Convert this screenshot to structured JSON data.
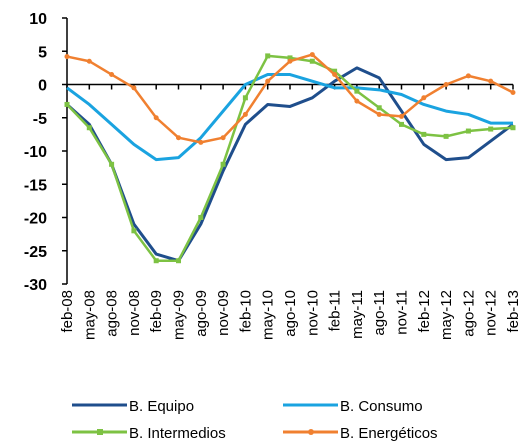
{
  "chart_data": {
    "type": "line",
    "categories": [
      "feb-08",
      "may-08",
      "ago-08",
      "nov-08",
      "feb-09",
      "may-09",
      "ago-09",
      "nov-09",
      "feb-10",
      "may-10",
      "ago-10",
      "nov-10",
      "feb-11",
      "may-11",
      "ago-11",
      "nov-11",
      "feb-12",
      "may-12",
      "ago-12",
      "nov-12",
      "feb-13"
    ],
    "series": [
      {
        "name": "B. Equipo",
        "color": "#1f4e8c",
        "marker": "none",
        "values": [
          -3,
          -6,
          -12,
          -21,
          -25.5,
          -26.5,
          -21,
          -13,
          -6,
          -3,
          -3.3,
          -2,
          0.5,
          2.5,
          1,
          -4,
          -9,
          -11.3,
          -11,
          -8.5,
          -6
        ]
      },
      {
        "name": "B. Consumo",
        "color": "#1aa3e0",
        "marker": "none",
        "values": [
          -0.5,
          -3,
          -6,
          -9,
          -11.3,
          -11,
          -8,
          -4,
          0,
          1.5,
          1.5,
          0.5,
          -0.5,
          -0.5,
          -0.8,
          -1.5,
          -3,
          -4,
          -4.5,
          -5.8,
          -5.8
        ]
      },
      {
        "name": "B. Intermedios",
        "color": "#7dc243",
        "marker": "square",
        "values": [
          -3,
          -6.5,
          -12,
          -22,
          -26.5,
          -26.5,
          -20,
          -12,
          -2,
          4.3,
          4,
          3.5,
          2,
          -1,
          -3.5,
          -6,
          -7.5,
          -7.8,
          -7,
          -6.7,
          -6.5
        ]
      },
      {
        "name": "B. Energéticos",
        "color": "#f08030",
        "marker": "circle",
        "values": [
          4.2,
          3.5,
          1.5,
          -0.5,
          -5,
          -8,
          -8.7,
          -8,
          -4.5,
          0.5,
          3.5,
          4.5,
          1.5,
          -2.5,
          -4.5,
          -4.8,
          -2,
          0,
          1.3,
          0.5,
          -1.2
        ]
      }
    ],
    "ylim": [
      -30,
      10
    ],
    "yticks": [
      -30,
      -25,
      -20,
      -15,
      -10,
      -5,
      0,
      5,
      10
    ]
  }
}
